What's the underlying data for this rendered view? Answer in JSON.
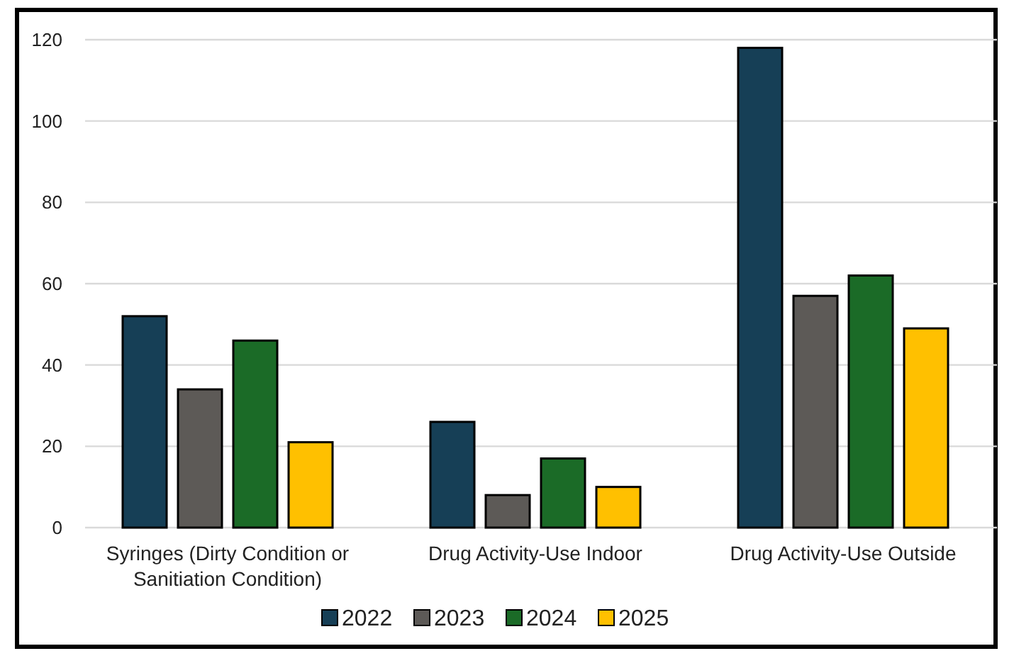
{
  "chart_data": {
    "type": "bar",
    "categories": [
      "Syringes (Dirty Condition or Sanitiation Condition)",
      "Drug Activity-Use Indoor",
      "Drug Activity-Use Outside"
    ],
    "series": [
      {
        "name": "2022",
        "color": "#163f56",
        "values": [
          52,
          26,
          118
        ]
      },
      {
        "name": "2023",
        "color": "#5d5a57",
        "values": [
          34,
          8,
          57
        ]
      },
      {
        "name": "2024",
        "color": "#1b6b27",
        "values": [
          46,
          17,
          62
        ]
      },
      {
        "name": "2025",
        "color": "#ffc000",
        "values": [
          21,
          10,
          49
        ]
      }
    ],
    "ylim": [
      0,
      120
    ],
    "yticks": [
      0,
      20,
      40,
      60,
      80,
      100,
      120
    ],
    "grid": "y",
    "legend": "bottom"
  }
}
